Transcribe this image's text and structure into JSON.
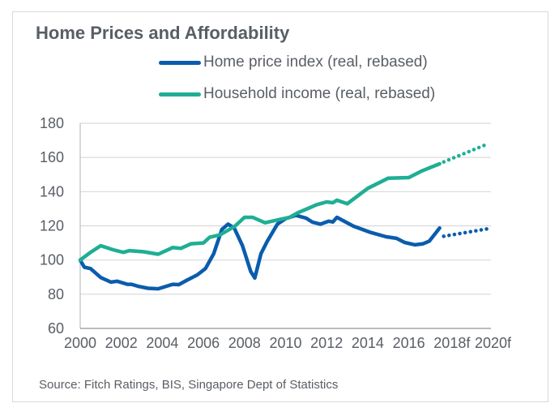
{
  "chart_data": {
    "type": "line",
    "title": "Home Prices and Affordability",
    "xlabel": "",
    "ylabel": "",
    "xlim": [
      2000,
      2020
    ],
    "ylim": [
      60,
      180
    ],
    "grid": true,
    "legend_placement": "top",
    "x_tick_labels": [
      "2000",
      "2002",
      "2004",
      "2006",
      "2008",
      "2010",
      "2012",
      "2014",
      "2016",
      "2018f",
      "2020f"
    ],
    "x_tick_values": [
      2000,
      2002,
      2004,
      2006,
      2008,
      2010,
      2012,
      2014,
      2016,
      2018.1,
      2020.1
    ],
    "y_ticks": [
      60,
      80,
      100,
      120,
      140,
      160,
      180
    ],
    "series": [
      {
        "name": "Home price index (real, rebased)",
        "color": "#0b5cad",
        "x": [
          2000,
          2000.2,
          2000.5,
          2001.0,
          2001.5,
          2001.8,
          2002.3,
          2002.5,
          2002.8,
          2003.3,
          2003.8,
          2004.5,
          2004.8,
          2005.2,
          2005.7,
          2006.1,
          2006.5,
          2006.9,
          2007.2,
          2007.5,
          2007.9,
          2008.3,
          2008.5,
          2008.8,
          2009.1,
          2009.6,
          2010.0,
          2010.5,
          2011.0,
          2011.3,
          2011.7,
          2012.1,
          2012.3,
          2012.5,
          2013.3,
          2014.1,
          2014.9,
          2015.4,
          2015.8,
          2016.3,
          2016.7,
          2017.0,
          2017.5
        ],
        "y": [
          100,
          95.8,
          95,
          89.8,
          87.1,
          87.6,
          85.8,
          85.8,
          84.7,
          83.5,
          83.2,
          85.8,
          85.6,
          88.2,
          91.3,
          95,
          103.7,
          117.9,
          121,
          118.7,
          108.4,
          93.4,
          89.5,
          103.7,
          110.8,
          121,
          124.2,
          126.1,
          124.5,
          122.2,
          121,
          122.7,
          122.3,
          125,
          119.8,
          116.3,
          113.6,
          112.7,
          110.3,
          108.9,
          109.5,
          111.1,
          118.7
        ],
        "forecast": {
          "x": [
            2017.7,
            2019.8
          ],
          "y": [
            113.9,
            118.2
          ]
        }
      },
      {
        "name": "Household income (real, rebased)",
        "color": "#1fae94",
        "x": [
          2000,
          2000.5,
          2001.0,
          2001.6,
          2002.1,
          2002.4,
          2003.1,
          2003.8,
          2004.5,
          2004.9,
          2005.4,
          2006.0,
          2006.3,
          2006.8,
          2007.5,
          2008.0,
          2008.4,
          2009.0,
          2009.6,
          2010.2,
          2010.6,
          2011.1,
          2011.5,
          2012.0,
          2012.3,
          2012.5,
          2013.0,
          2014.0,
          2015.0,
          2016.0,
          2016.6,
          2017.5
        ],
        "y": [
          100,
          104.5,
          108.4,
          106,
          104.5,
          105.5,
          104.8,
          103.4,
          107.3,
          106.8,
          109.5,
          110,
          113.3,
          114.7,
          119.5,
          125,
          125,
          121.8,
          123.4,
          125,
          127.7,
          130.2,
          132.3,
          134,
          133.5,
          135,
          132.9,
          141.9,
          147.9,
          148.2,
          151.9,
          156.3
        ],
        "forecast": {
          "x": [
            2017.7,
            2019.8
          ],
          "y": [
            157.4,
            167.7
          ]
        }
      }
    ],
    "source": "Source: Fitch Ratings, BIS, Singapore Dept of Statistics"
  }
}
